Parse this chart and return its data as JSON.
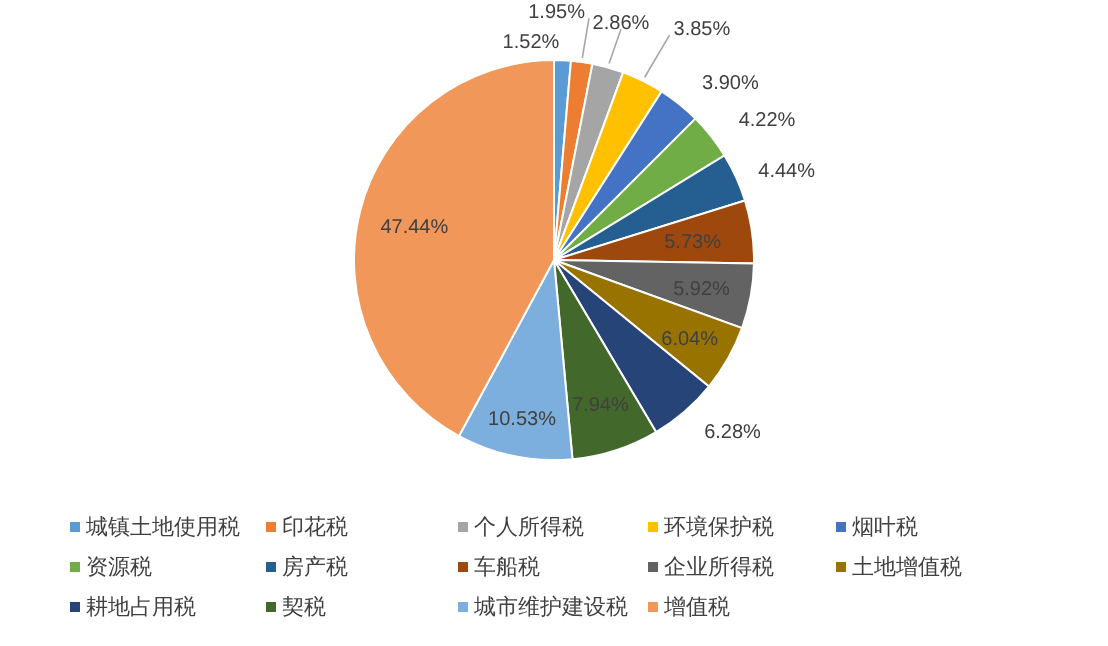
{
  "chart_data": {
    "type": "pie",
    "categories": [
      "城镇土地使用税",
      "印花税",
      "个人所得税",
      "环境保护税",
      "烟叶税",
      "资源税",
      "房产税",
      "车船税",
      "企业所得税",
      "土地增值税",
      "耕地占用税",
      "契税",
      "城市维护建设税",
      "增值税"
    ],
    "values": [
      1.52,
      1.95,
      2.86,
      3.85,
      3.9,
      4.22,
      4.44,
      5.73,
      5.92,
      6.04,
      6.28,
      7.94,
      10.53,
      47.44
    ],
    "value_labels": [
      "1.52%",
      "1.95%",
      "2.86%",
      "3.85%",
      "3.90%",
      "4.22%",
      "4.44%",
      "5.73%",
      "5.92%",
      "6.04%",
      "6.28%",
      "7.94%",
      "10.53%",
      "47.44%"
    ],
    "colors": [
      "#5b9bd5",
      "#ed7d31",
      "#a5a5a5",
      "#ffc000",
      "#4472c4",
      "#70ad47",
      "#255e91",
      "#9e480e",
      "#636363",
      "#997300",
      "#264478",
      "#43682b",
      "#7cafdd",
      "#f1975a"
    ],
    "legend": "bottom"
  }
}
